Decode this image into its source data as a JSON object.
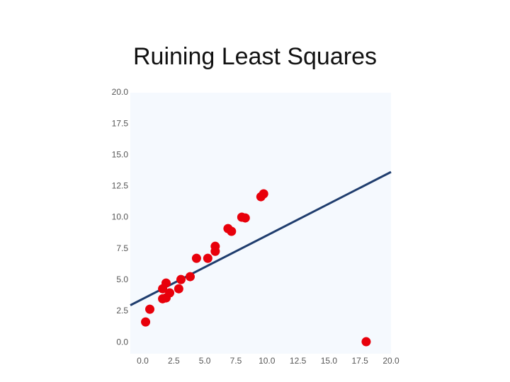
{
  "chart_data": {
    "type": "scatter",
    "title": "Ruining Least Squares",
    "x": [
      0.23,
      0.57,
      1.6,
      1.88,
      1.6,
      1.88,
      2.17,
      2.9,
      3.08,
      3.82,
      4.33,
      5.24,
      5.84,
      5.84,
      6.87,
      7.15,
      7.98,
      8.26,
      9.52,
      9.74,
      18.0
    ],
    "y": [
      1.64,
      2.66,
      3.5,
      3.57,
      4.3,
      4.76,
      3.97,
      4.3,
      5.04,
      5.27,
      6.74,
      6.74,
      7.3,
      7.7,
      9.12,
      8.9,
      10.03,
      9.97,
      11.67,
      11.9,
      0.06
    ],
    "color": "#e8000b",
    "line": {
      "x": [
        -1,
        20
      ],
      "values": [
        2.98,
        13.65
      ],
      "color": "#1f3d6e"
    },
    "xlim": [
      -1,
      20
    ],
    "ylim": [
      -0.9,
      20
    ],
    "xticks": [
      {
        "value": 0,
        "label": "0.0"
      },
      {
        "value": 2.5,
        "label": "2.5"
      },
      {
        "value": 5,
        "label": "5.0"
      },
      {
        "value": 7.5,
        "label": "7.5"
      },
      {
        "value": 10,
        "label": "10.0"
      },
      {
        "value": 12.5,
        "label": "12.5"
      },
      {
        "value": 15,
        "label": "15.0"
      },
      {
        "value": 17.5,
        "label": "17.5"
      },
      {
        "value": 20,
        "label": "20.0"
      }
    ],
    "yticks": [
      {
        "value": 0,
        "label": "0.0"
      },
      {
        "value": 2.5,
        "label": "2.5"
      },
      {
        "value": 5,
        "label": "5.0"
      },
      {
        "value": 7.5,
        "label": "7.5"
      },
      {
        "value": 10,
        "label": "10.0"
      },
      {
        "value": 12.5,
        "label": "12.5"
      },
      {
        "value": 15,
        "label": "15.0"
      },
      {
        "value": 17.5,
        "label": "17.5"
      },
      {
        "value": 20,
        "label": "20.0"
      }
    ]
  }
}
